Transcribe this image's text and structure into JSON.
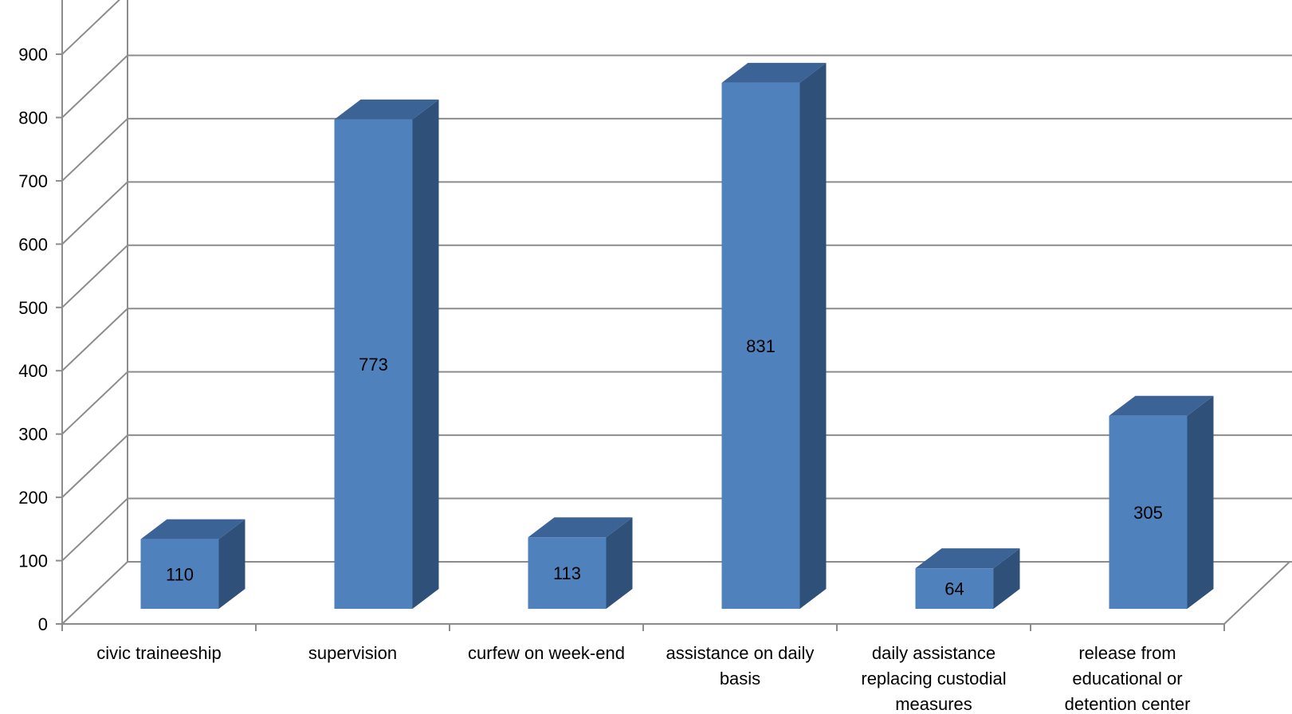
{
  "chart_data": {
    "type": "bar",
    "title": "",
    "xlabel": "",
    "ylabel": "",
    "categories": [
      "civic traineeship",
      "supervision",
      "curfew on week-end",
      "assistance on daily basis",
      "daily assistance replacing custodial measures",
      "release from educational or detention center"
    ],
    "category_lines": [
      [
        "civic traineeship"
      ],
      [
        "supervision"
      ],
      [
        "curfew on week-end"
      ],
      [
        "assistance on daily",
        "basis"
      ],
      [
        "daily assistance",
        "replacing custodial",
        "measures"
      ],
      [
        "release from",
        "educational or",
        "detention center"
      ]
    ],
    "values": [
      110,
      773,
      113,
      831,
      64,
      305
    ],
    "data_labels": [
      "110",
      "773",
      "113",
      "831",
      "64",
      "305"
    ],
    "ylim": [
      0,
      900
    ],
    "yticks": [
      0,
      100,
      200,
      300,
      400,
      500,
      600,
      700,
      800,
      900
    ],
    "ytick_labels": [
      "0",
      "100",
      "200",
      "300",
      "400",
      "500",
      "600",
      "700",
      "800",
      "900"
    ],
    "grid": true,
    "legend": "none",
    "style": "3d-column",
    "colors": {
      "bar_front": "#4f81bd",
      "bar_top": "#3c6395",
      "bar_side": "#2f5179",
      "grid": "#8c8c8c",
      "axis": "#8c8c8c"
    }
  }
}
